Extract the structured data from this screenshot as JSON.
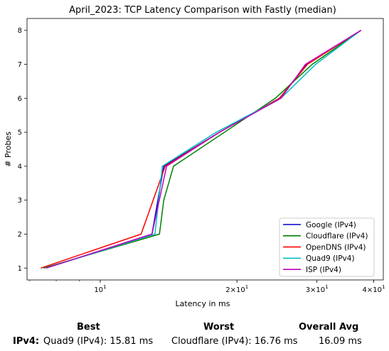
{
  "chart_data": {
    "type": "line",
    "title": "April_2023: TCP Latency Comparison with Fastly (median)",
    "xlabel": "Latency in ms",
    "ylabel": "# Probes",
    "xscale": "log",
    "xlim": [
      6.9,
      42
    ],
    "ylim": [
      0.65,
      8.35
    ],
    "xticks": [
      {
        "value": 10,
        "base": "10",
        "exp": "1",
        "coef": ""
      },
      {
        "value": 20,
        "base": "10",
        "exp": "1",
        "coef": "2×"
      },
      {
        "value": 30,
        "base": "10",
        "exp": "1",
        "coef": "3×"
      },
      {
        "value": 40,
        "base": "10",
        "exp": "1",
        "coef": "4×"
      }
    ],
    "yticks": [
      1,
      2,
      3,
      4,
      5,
      6,
      7,
      8
    ],
    "legend_position": "lower right",
    "series": [
      {
        "name": "Google (IPv4)",
        "color": "#0000cc",
        "x": [
          7.6,
          13.0,
          13.8,
          18.3,
          24.8,
          28.5,
          37.5
        ],
        "y": [
          1,
          2,
          4,
          5,
          6,
          7,
          8
        ]
      },
      {
        "name": "Cloudflare (IPv4)",
        "color": "#008000",
        "x": [
          7.5,
          13.5,
          13.8,
          14.5,
          24.3,
          29.3,
          37.5
        ],
        "y": [
          1,
          2,
          3,
          4,
          6,
          7,
          8
        ]
      },
      {
        "name": "OpenDNS (IPv4)",
        "color": "#ff0000",
        "x": [
          7.4,
          12.3,
          13.9,
          18.3,
          24.8,
          28.6,
          37.5
        ],
        "y": [
          1,
          2,
          4,
          5,
          6,
          7,
          8
        ]
      },
      {
        "name": "Quad9 (IPv4)",
        "color": "#00bfbf",
        "x": [
          7.6,
          13.2,
          13.7,
          18.0,
          25.0,
          29.8,
          37.5
        ],
        "y": [
          1,
          2,
          4,
          5,
          6,
          7,
          8
        ]
      },
      {
        "name": "ISP (IPv4)",
        "color": "#bf00bf",
        "x": [
          7.6,
          13.0,
          14.0,
          18.3,
          25.0,
          28.3,
          37.5
        ],
        "y": [
          1,
          2,
          4,
          5,
          6,
          7,
          8
        ]
      }
    ]
  },
  "summary": {
    "best_header": "Best",
    "worst_header": "Worst",
    "avg_header": "Overall Avg",
    "row_label": "IPv4:",
    "best": "Quad9 (IPv4): 15.81 ms",
    "worst": "Cloudflare (IPv4): 16.76 ms",
    "avg": "16.09 ms"
  }
}
